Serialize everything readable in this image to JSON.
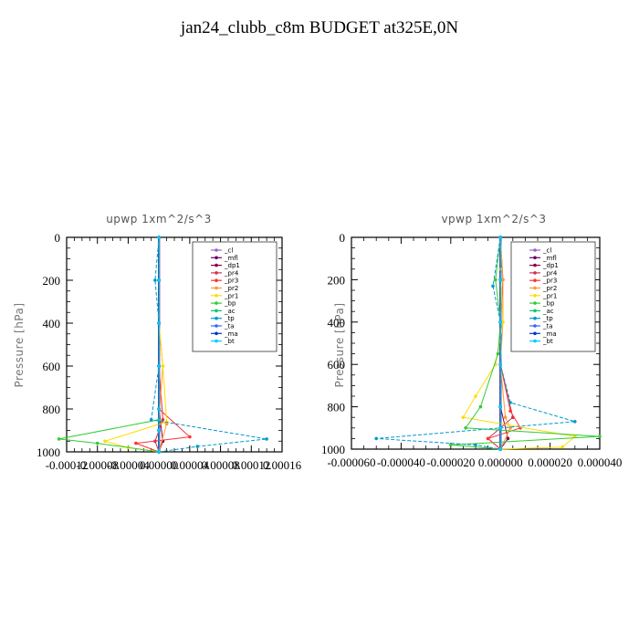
{
  "title": "jan24_clubb_c8m  BUDGET at325E,0N",
  "legend_entries": [
    {
      "name": "_cl",
      "color": "#9966cc"
    },
    {
      "name": "_mfl",
      "color": "#660066"
    },
    {
      "name": "_dp1",
      "color": "#880044"
    },
    {
      "name": "_pr4",
      "color": "#cc3355"
    },
    {
      "name": "_pr3",
      "color": "#ff3333"
    },
    {
      "name": "_pr2",
      "color": "#ff9933"
    },
    {
      "name": "_pr1",
      "color": "#ffdd00"
    },
    {
      "name": "_bp",
      "color": "#33cc33"
    },
    {
      "name": "_ac",
      "color": "#00cc66"
    },
    {
      "name": "_tp",
      "color": "#0099cc"
    },
    {
      "name": "_ta",
      "color": "#3366ff"
    },
    {
      "name": "_ma",
      "color": "#0033cc"
    },
    {
      "name": "_bt",
      "color": "#00ccff"
    }
  ],
  "chart_data": [
    {
      "type": "line",
      "title": "upwp   1xm^2/s^3",
      "ylabel": "Pressure [hPa]",
      "xlabel": "",
      "xlim": [
        -0.00012,
        0.00016
      ],
      "ylim": [
        1000,
        0
      ],
      "xticks": [
        -0.00012,
        -8e-05,
        -4e-05,
        0.0,
        4e-05,
        8e-05,
        0.00012,
        0.00016
      ],
      "xtick_labels": [
        "-0.00012",
        "-0.00008",
        "-0.00004",
        "0.00000",
        "0.00004",
        "0.00008",
        "0.00012",
        "0.00016"
      ],
      "yticks": [
        0,
        200,
        400,
        600,
        800,
        1000
      ],
      "ytick_labels": [
        "0",
        "200",
        "400",
        "600",
        "800",
        "1000"
      ],
      "legend_position": "top-right",
      "series": [
        {
          "name": "_cl",
          "x": [
            0,
            0,
            0,
            0,
            0,
            0,
            0
          ],
          "y": [
            0,
            200,
            400,
            600,
            800,
            900,
            1000
          ]
        },
        {
          "name": "_mfl",
          "x": [
            0,
            0,
            0,
            0,
            0,
            0,
            0
          ],
          "y": [
            0,
            200,
            400,
            600,
            800,
            900,
            1000
          ]
        },
        {
          "name": "_dp1",
          "x": [
            0,
            0,
            0,
            0,
            0,
            5e-06,
            0
          ],
          "y": [
            0,
            200,
            400,
            600,
            800,
            950,
            1000
          ]
        },
        {
          "name": "_pr4",
          "x": [
            0,
            0,
            0,
            0,
            5e-06,
            -5e-06,
            0
          ],
          "y": [
            0,
            200,
            400,
            600,
            850,
            950,
            1000
          ]
        },
        {
          "name": "_pr3",
          "x": [
            0,
            0,
            0,
            0,
            0,
            4e-05,
            -3e-05,
            0
          ],
          "y": [
            0,
            200,
            400,
            600,
            800,
            930,
            960,
            1000
          ]
        },
        {
          "name": "_pr2",
          "x": [
            0,
            0,
            0,
            5e-06,
            0,
            1e-05,
            0
          ],
          "y": [
            0,
            200,
            400,
            600,
            850,
            870,
            1000
          ]
        },
        {
          "name": "_pr1",
          "x": [
            0,
            0,
            0,
            5e-06,
            1e-05,
            -7e-05,
            -4e-05,
            0
          ],
          "y": [
            0,
            200,
            400,
            600,
            860,
            950,
            980,
            1000
          ]
        },
        {
          "name": "_bp",
          "x": [
            0,
            0,
            0,
            0,
            0,
            -0.00013,
            -8e-05,
            0
          ],
          "y": [
            0,
            200,
            400,
            600,
            850,
            940,
            960,
            1000
          ]
        },
        {
          "name": "_ac",
          "x": [
            0,
            0,
            0,
            0,
            0,
            0,
            0
          ],
          "y": [
            0,
            200,
            400,
            600,
            800,
            900,
            1000
          ]
        },
        {
          "name": "_tp",
          "x": [
            0,
            -5e-06,
            0,
            0,
            -1e-05,
            0.00014,
            5e-05,
            0
          ],
          "y": [
            0,
            200,
            400,
            600,
            850,
            940,
            975,
            1000
          ]
        },
        {
          "name": "_ta",
          "x": [
            0,
            0,
            0,
            0,
            0,
            0,
            0
          ],
          "y": [
            0,
            200,
            400,
            600,
            800,
            900,
            1000
          ]
        },
        {
          "name": "_ma",
          "x": [
            0,
            0,
            0,
            0,
            0,
            0,
            0
          ],
          "y": [
            0,
            200,
            400,
            600,
            800,
            900,
            1000
          ]
        },
        {
          "name": "_bt",
          "x": [
            0,
            0,
            0,
            0,
            0,
            0,
            0
          ],
          "y": [
            0,
            200,
            400,
            600,
            800,
            900,
            1000
          ]
        }
      ]
    },
    {
      "type": "line",
      "title": "vpwp   1xm^2/s^3",
      "ylabel": "Pressure [hPa]",
      "xlabel": "",
      "xlim": [
        -6e-05,
        4e-05
      ],
      "ylim": [
        1000,
        0
      ],
      "xticks": [
        -6e-05,
        -4e-05,
        -2e-05,
        0.0,
        2e-05,
        4e-05
      ],
      "xtick_labels": [
        "-0.000060",
        "-0.000040",
        "-0.000020",
        "0.000000",
        "0.000020",
        "0.000040"
      ],
      "yticks": [
        0,
        200,
        400,
        600,
        800,
        1000
      ],
      "ytick_labels": [
        "0",
        "200",
        "400",
        "600",
        "800",
        "1000"
      ],
      "legend_position": "top-right",
      "series": [
        {
          "name": "_cl",
          "x": [
            0,
            0,
            0,
            0,
            0,
            0,
            0
          ],
          "y": [
            0,
            200,
            400,
            600,
            800,
            900,
            1000
          ]
        },
        {
          "name": "_mfl",
          "x": [
            0,
            0,
            0,
            0,
            0,
            0,
            0
          ],
          "y": [
            0,
            200,
            400,
            600,
            800,
            900,
            1000
          ]
        },
        {
          "name": "_dp1",
          "x": [
            0,
            0,
            0,
            0,
            0,
            3e-06,
            0
          ],
          "y": [
            0,
            200,
            400,
            600,
            800,
            950,
            1000
          ]
        },
        {
          "name": "_pr4",
          "x": [
            0,
            0,
            0,
            0,
            5e-06,
            -5e-06,
            0
          ],
          "y": [
            0,
            200,
            400,
            600,
            850,
            950,
            1000
          ]
        },
        {
          "name": "_pr3",
          "x": [
            0,
            1e-06,
            0,
            0,
            4e-06,
            8e-06,
            -5e-06,
            0
          ],
          "y": [
            0,
            200,
            400,
            600,
            820,
            900,
            950,
            1000
          ]
        },
        {
          "name": "_pr2",
          "x": [
            0,
            1e-06,
            1e-06,
            0,
            2e-06,
            4e-06,
            0
          ],
          "y": [
            0,
            200,
            400,
            600,
            850,
            900,
            1000
          ]
        },
        {
          "name": "_pr1",
          "x": [
            0,
            0,
            1e-06,
            -2e-06,
            -1e-05,
            -1.5e-05,
            3e-05,
            2.5e-05,
            0
          ],
          "y": [
            0,
            150,
            400,
            600,
            750,
            850,
            940,
            990,
            1000
          ]
        },
        {
          "name": "_bp",
          "x": [
            0,
            -2e-06,
            0,
            -1e-06,
            -8e-06,
            -1.4e-05,
            4e-05,
            -2e-05,
            0
          ],
          "y": [
            0,
            200,
            400,
            550,
            800,
            900,
            940,
            980,
            1000
          ]
        },
        {
          "name": "_ac",
          "x": [
            0,
            0,
            0,
            0,
            0,
            0,
            0
          ],
          "y": [
            0,
            200,
            400,
            600,
            800,
            900,
            1000
          ]
        },
        {
          "name": "_tp",
          "x": [
            0,
            -3e-06,
            0,
            0,
            4e-06,
            3e-05,
            -5e-05,
            -1e-05,
            0
          ],
          "y": [
            0,
            230,
            400,
            600,
            780,
            870,
            950,
            980,
            1000
          ]
        },
        {
          "name": "_ta",
          "x": [
            0,
            0,
            0,
            0,
            0,
            0,
            0
          ],
          "y": [
            0,
            200,
            400,
            600,
            800,
            900,
            1000
          ]
        },
        {
          "name": "_ma",
          "x": [
            0,
            0,
            0,
            0,
            0,
            0,
            0
          ],
          "y": [
            0,
            200,
            400,
            600,
            800,
            900,
            1000
          ]
        },
        {
          "name": "_bt",
          "x": [
            0,
            0,
            0,
            0,
            0,
            0,
            0
          ],
          "y": [
            0,
            200,
            400,
            600,
            800,
            900,
            1000
          ]
        }
      ]
    }
  ]
}
